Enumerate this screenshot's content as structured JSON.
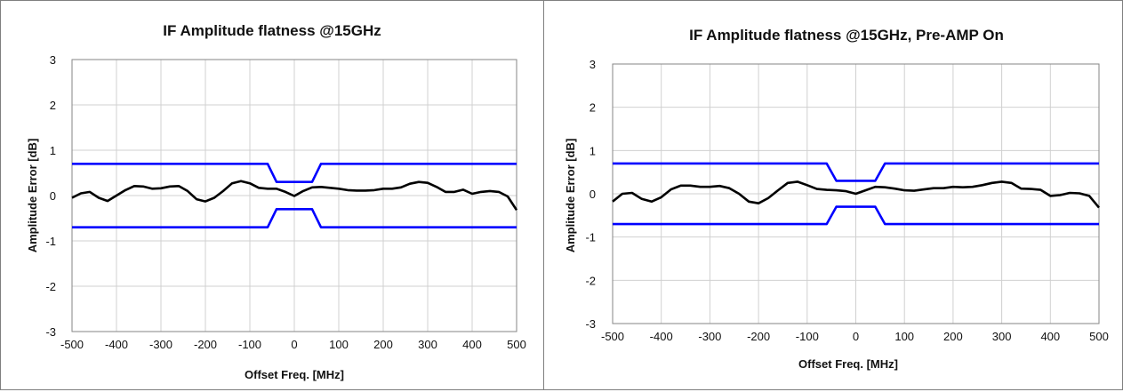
{
  "chart_data": [
    {
      "type": "line",
      "title": "IF Amplitude flatness @15GHz",
      "xlabel": "Offset Freq. [MHz]",
      "ylabel": "Amplitude Error [dB]",
      "xlim": [
        -500,
        500
      ],
      "ylim": [
        -3,
        3
      ],
      "x_ticks": [
        "-500",
        "-400",
        "-300",
        "-200",
        "-100",
        "0",
        "100",
        "200",
        "300",
        "400",
        "500"
      ],
      "y_ticks": [
        "3",
        "2",
        "1",
        "0",
        "-1",
        "-2",
        "-3"
      ],
      "grid": true,
      "series": [
        {
          "color": "#000000",
          "x": [
            -500,
            -480,
            -460,
            -440,
            -420,
            -400,
            -380,
            -360,
            -340,
            -320,
            -300,
            -280,
            -260,
            -240,
            -220,
            -200,
            -180,
            -160,
            -140,
            -120,
            -100,
            -80,
            -60,
            -40,
            -20,
            0,
            20,
            40,
            60,
            80,
            100,
            120,
            140,
            160,
            180,
            200,
            220,
            240,
            260,
            280,
            300,
            320,
            340,
            360,
            380,
            400,
            420,
            440,
            460,
            480,
            500
          ],
          "y": [
            -0.05,
            0.05,
            0.08,
            -0.05,
            -0.12,
            0.0,
            0.12,
            0.21,
            0.2,
            0.15,
            0.16,
            0.2,
            0.21,
            0.1,
            -0.08,
            -0.13,
            -0.05,
            0.1,
            0.27,
            0.32,
            0.27,
            0.17,
            0.15,
            0.15,
            0.08,
            -0.01,
            0.1,
            0.18,
            0.19,
            0.17,
            0.15,
            0.12,
            0.11,
            0.11,
            0.12,
            0.15,
            0.15,
            0.18,
            0.26,
            0.3,
            0.28,
            0.19,
            0.08,
            0.08,
            0.13,
            0.04,
            0.08,
            0.1,
            0.08,
            -0.02,
            -0.32
          ]
        },
        {
          "color": "#0000ff",
          "x": [
            -500,
            -60,
            -40,
            40,
            60,
            500
          ],
          "y": [
            0.7,
            0.7,
            0.3,
            0.3,
            0.7,
            0.7
          ]
        },
        {
          "color": "#0000ff",
          "x": [
            -500,
            -60,
            -40,
            40,
            60,
            500
          ],
          "y": [
            -0.7,
            -0.7,
            -0.3,
            -0.3,
            -0.7,
            -0.7
          ]
        }
      ]
    },
    {
      "type": "line",
      "title": "IF Amplitude flatness @15GHz, Pre-AMP On",
      "xlabel": "Offset Freq. [MHz]",
      "ylabel": "Amplitude Error [dB]",
      "xlim": [
        -500,
        500
      ],
      "ylim": [
        -3,
        3
      ],
      "x_ticks": [
        "-500",
        "-400",
        "-300",
        "-200",
        "-100",
        "0",
        "100",
        "200",
        "300",
        "400",
        "500"
      ],
      "y_ticks": [
        "3",
        "2",
        "1",
        "0",
        "-1",
        "-2",
        "-3"
      ],
      "grid": true,
      "series": [
        {
          "color": "#000000",
          "x": [
            -500,
            -480,
            -460,
            -440,
            -420,
            -400,
            -380,
            -360,
            -340,
            -320,
            -300,
            -280,
            -260,
            -240,
            -220,
            -200,
            -180,
            -160,
            -140,
            -120,
            -100,
            -80,
            -60,
            -40,
            -20,
            0,
            20,
            40,
            60,
            80,
            100,
            120,
            140,
            160,
            180,
            200,
            220,
            240,
            260,
            280,
            300,
            320,
            340,
            360,
            380,
            400,
            420,
            440,
            460,
            480,
            500
          ],
          "y": [
            -0.18,
            0.0,
            0.02,
            -0.12,
            -0.18,
            -0.08,
            0.1,
            0.19,
            0.19,
            0.16,
            0.16,
            0.18,
            0.13,
            0.0,
            -0.18,
            -0.22,
            -0.1,
            0.08,
            0.25,
            0.28,
            0.2,
            0.11,
            0.09,
            0.08,
            0.06,
            0.0,
            0.08,
            0.16,
            0.15,
            0.12,
            0.08,
            0.07,
            0.1,
            0.13,
            0.13,
            0.16,
            0.15,
            0.16,
            0.2,
            0.25,
            0.28,
            0.25,
            0.12,
            0.11,
            0.09,
            -0.05,
            -0.03,
            0.02,
            0.01,
            -0.05,
            -0.32
          ]
        },
        {
          "color": "#0000ff",
          "x": [
            -500,
            -60,
            -40,
            40,
            60,
            500
          ],
          "y": [
            0.7,
            0.7,
            0.3,
            0.3,
            0.7,
            0.7
          ]
        },
        {
          "color": "#0000ff",
          "x": [
            -500,
            -60,
            -40,
            40,
            60,
            500
          ],
          "y": [
            -0.7,
            -0.7,
            -0.3,
            -0.3,
            -0.7,
            -0.7
          ]
        }
      ]
    }
  ]
}
